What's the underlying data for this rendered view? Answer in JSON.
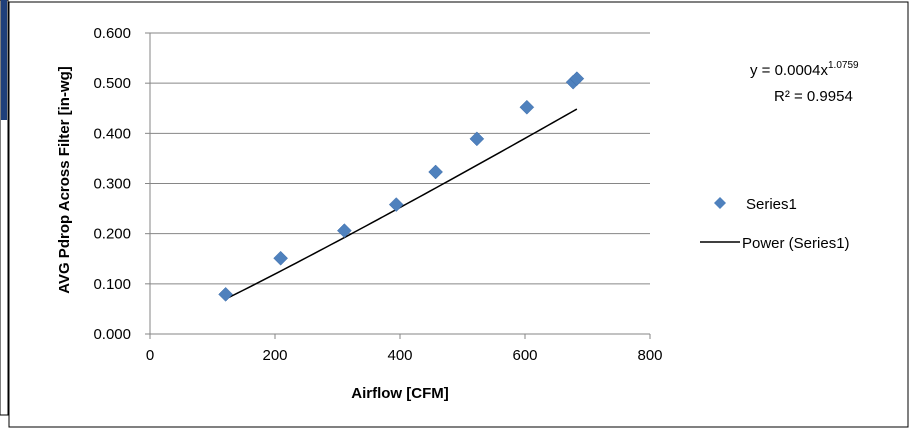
{
  "chart_data": {
    "type": "scatter",
    "xlabel": "Airflow [CFM]",
    "ylabel": "AVG Pdrop Across Filter [in-wg]",
    "xlim": [
      0,
      800
    ],
    "ylim": [
      0,
      0.6
    ],
    "x_ticks": [
      "0",
      "200",
      "400",
      "600",
      "800"
    ],
    "y_ticks": [
      "0.000",
      "0.100",
      "0.200",
      "0.300",
      "0.400",
      "0.500",
      "0.600"
    ],
    "grid": "horizontal",
    "legend_position": "right",
    "series": [
      {
        "name": "Series1",
        "marker": "diamond",
        "color": "#4F81BD",
        "points": [
          {
            "x": 121,
            "y": 0.079
          },
          {
            "x": 209,
            "y": 0.151
          },
          {
            "x": 311,
            "y": 0.206
          },
          {
            "x": 394,
            "y": 0.258
          },
          {
            "x": 457,
            "y": 0.323
          },
          {
            "x": 523,
            "y": 0.389
          },
          {
            "x": 603,
            "y": 0.452
          },
          {
            "x": 677,
            "y": 0.502
          },
          {
            "x": 683,
            "y": 0.509
          }
        ]
      }
    ],
    "trendline": {
      "name": "Power (Series1)",
      "type": "power",
      "coefficient": 0.0004,
      "exponent": 1.0759,
      "x_range": [
        121,
        683
      ],
      "color": "#000000",
      "equation_prefix": "y = 0.0004x",
      "equation_exponent": "1.0759",
      "r_squared_label": "R² = 0.9954"
    }
  }
}
